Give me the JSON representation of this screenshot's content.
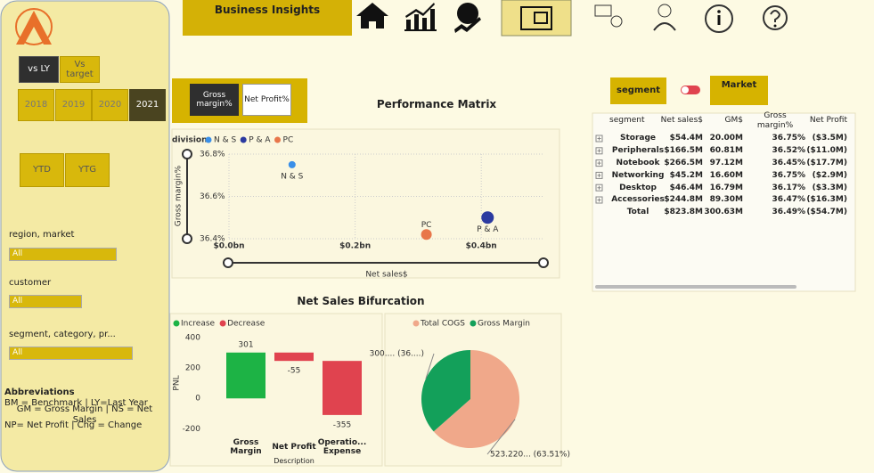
{
  "header": {
    "title": "Business Insights"
  },
  "sidebar": {
    "compare": [
      "vs LY",
      "Vs target"
    ],
    "years": [
      "2018",
      "2019",
      "2020",
      "2021"
    ],
    "periods": [
      "YTD",
      "YTG"
    ],
    "filters": [
      {
        "label": "region, market",
        "value": "All"
      },
      {
        "label": "customer",
        "value": "All"
      },
      {
        "label": "segment, category, pr...",
        "value": "All"
      }
    ],
    "abbreviations": {
      "title": "Abbreviations",
      "lines": [
        "BM = Benchmark | LY=Last Year",
        "GM = Gross Margin | NS = Net Sales",
        "NP= Net Profit | Chg = Change"
      ]
    }
  },
  "metric_toggle": [
    "Gross margin%",
    "Net Profit%"
  ],
  "segment_toggle": [
    "segment",
    "Market"
  ],
  "table": {
    "columns": [
      "segment",
      "Net sales$",
      "GM$",
      "Gross margin%",
      "Net Profit"
    ],
    "rows": [
      [
        "Storage",
        "$54.4M",
        "20.00M",
        "36.75%",
        "($3.5M)"
      ],
      [
        "Peripherals",
        "$166.5M",
        "60.81M",
        "36.52%",
        "($11.0M)"
      ],
      [
        "Notebook",
        "$266.5M",
        "97.12M",
        "36.45%",
        "($17.7M)"
      ],
      [
        "Networking",
        "$45.2M",
        "16.60M",
        "36.75%",
        "($2.9M)"
      ],
      [
        "Desktop",
        "$46.4M",
        "16.79M",
        "36.17%",
        "($3.3M)"
      ],
      [
        "Accessories",
        "$244.8M",
        "89.30M",
        "36.47%",
        "($16.3M)"
      ]
    ],
    "total": [
      "Total",
      "$823.8M",
      "300.63M",
      "36.49%",
      "($54.7M)"
    ]
  },
  "chart_data": [
    {
      "type": "scatter",
      "title": "Performance Matrix",
      "legend_title": "division",
      "series": [
        {
          "name": "N & S",
          "color": "#3a8fe8",
          "x": [
            0.1
          ],
          "values": [
            36.75
          ]
        },
        {
          "name": "P & A",
          "color": "#2b3aa0",
          "x": [
            0.41
          ],
          "values": [
            36.5
          ]
        },
        {
          "name": "PC",
          "color": "#e8764a",
          "x": [
            0.313
          ],
          "values": [
            36.42
          ]
        }
      ],
      "xlabel": "Net sales$",
      "ylabel": "Gross margin%",
      "xlim": [
        0,
        0.5
      ],
      "ylim": [
        36.4,
        36.8
      ],
      "xticks": [
        {
          "value": 0,
          "label": "$0.0bn"
        },
        {
          "value": 0.2,
          "label": "$0.2bn"
        },
        {
          "value": 0.4,
          "label": "$0.4bn"
        }
      ],
      "yticks": [
        {
          "value": 36.4,
          "label": "36.4%"
        },
        {
          "value": 36.6,
          "label": "36.6%"
        },
        {
          "value": 36.8,
          "label": "36.8%"
        }
      ],
      "grid": true
    },
    {
      "type": "waterfall",
      "title": "Net Sales Bifurcation",
      "legend": [
        {
          "name": "Increase",
          "color": "#1db345"
        },
        {
          "name": "Decrease",
          "color": "#e0434f"
        }
      ],
      "categories": [
        "Gross Margin",
        "Net Profit",
        "Operatio... Expense"
      ],
      "values": [
        301,
        -55,
        -355
      ],
      "xlabel": "Description",
      "ylabel": "PNL",
      "ylim": [
        -250,
        440
      ],
      "yticks": [
        -200,
        0,
        200,
        400
      ]
    },
    {
      "type": "pie",
      "categories": [
        "Total COGS",
        "Gross Margin"
      ],
      "colors": [
        "#f0a88a",
        "#13a05a"
      ],
      "values": [
        523.22,
        300.63
      ],
      "value_labels": [
        "523.220... (63.51%)",
        "300.... (36....)"
      ]
    }
  ]
}
